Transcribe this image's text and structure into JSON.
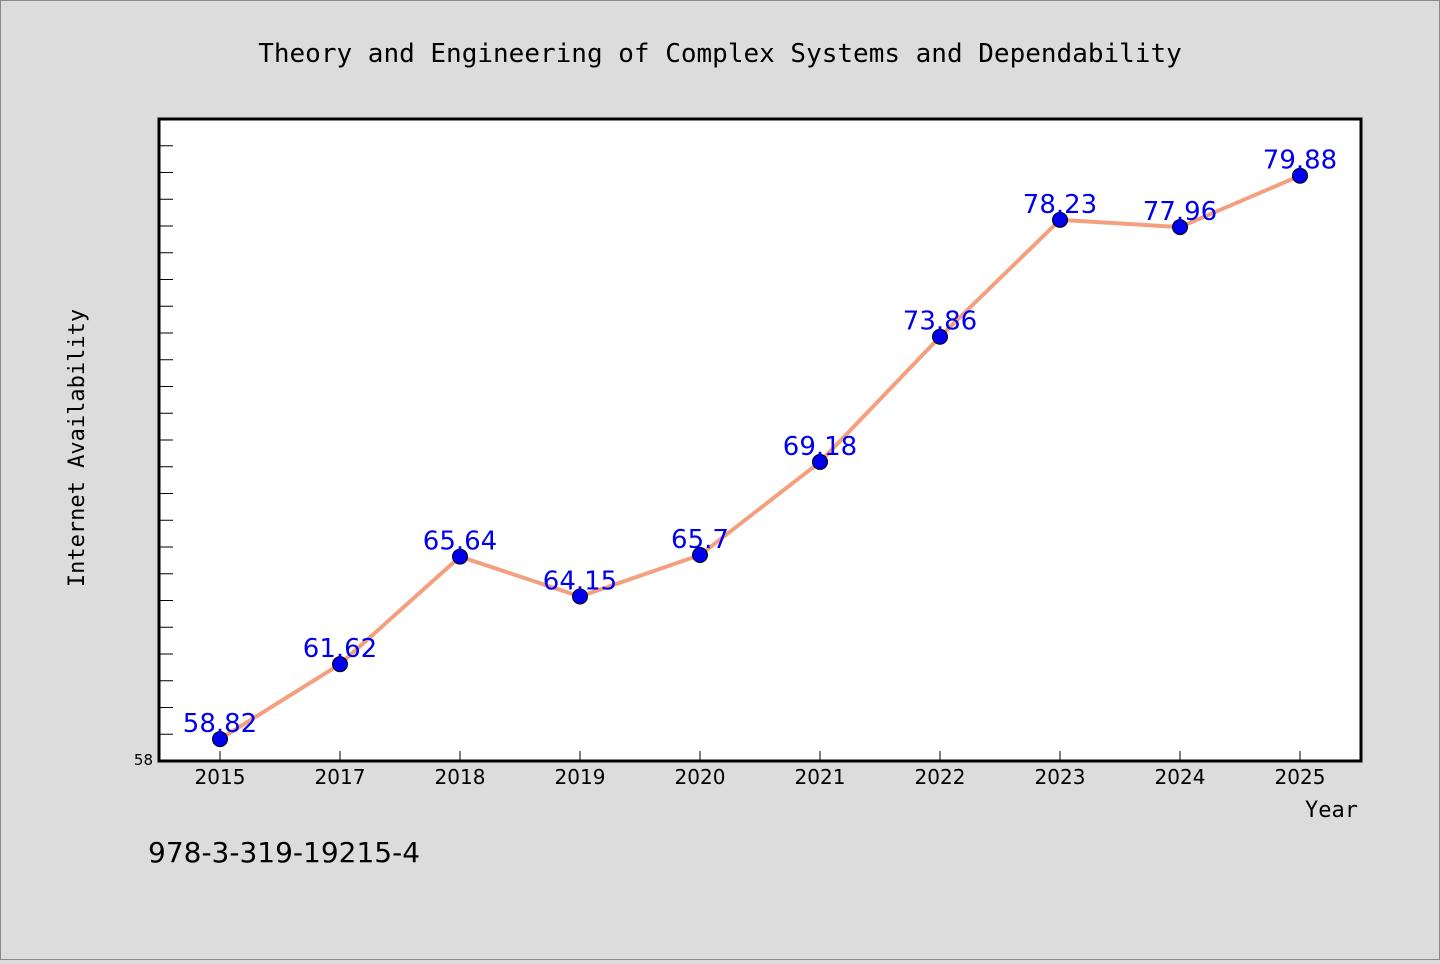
{
  "chart_data": {
    "type": "line",
    "title": "Theory and Engineering of Complex Systems and Dependability",
    "xlabel": "Year",
    "ylabel": "Internet Availability",
    "categories": [
      "2015",
      "2017",
      "2018",
      "2019",
      "2020",
      "2021",
      "2022",
      "2023",
      "2024",
      "2025"
    ],
    "series": [
      {
        "values": [
          58.82,
          61.62,
          65.64,
          64.15,
          65.7,
          69.18,
          73.86,
          78.23,
          77.96,
          79.88
        ],
        "labels": [
          "58.82",
          "61.62",
          "65.64",
          "64.15",
          "65.7",
          "69.18",
          "73.86",
          "78.23",
          "77.96",
          "79.88"
        ]
      }
    ],
    "y_min_label": "58",
    "ylim": [
      58,
      82
    ],
    "grid": false,
    "legend": "none",
    "colors": {
      "line": "#f4a07e",
      "marker": "#0000ee",
      "label": "#0000ee"
    }
  },
  "footer": {
    "text": "978-3-319-19215-4"
  }
}
